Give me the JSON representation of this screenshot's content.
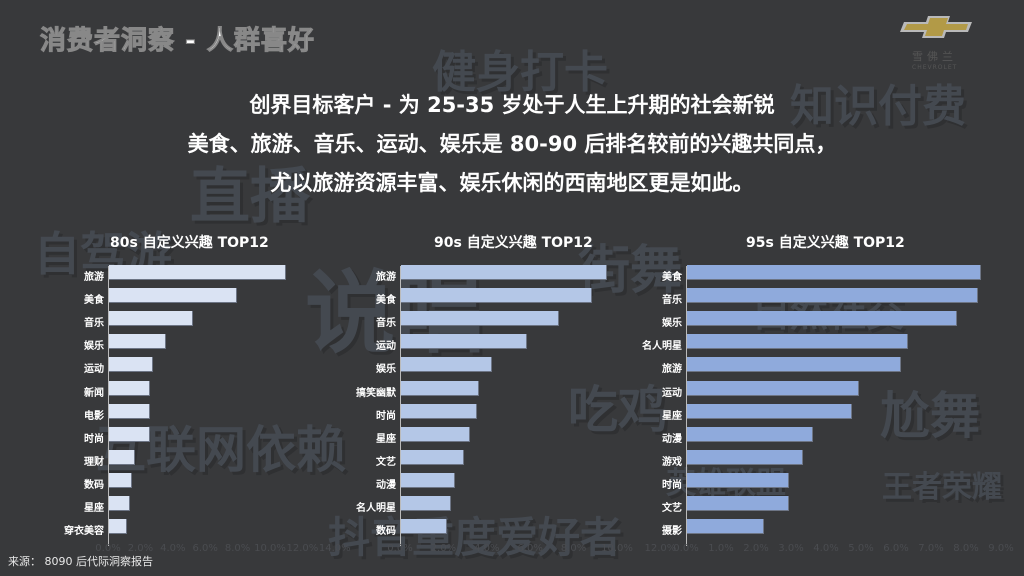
{
  "header": {
    "title": "消费者洞察 - 人群喜好",
    "logo_cn": "雪佛兰",
    "logo_en": "CHEVROLET"
  },
  "subtitle": {
    "line1": "创界目标客户 - 为 25-35 岁处于人生上升期的社会新锐",
    "line2": "美食、旅游、音乐、运动、娱乐是 80-90 后排名较前的兴趣共同点，",
    "line3": "尤以旅游资源丰富、娱乐休闲的西南地区更是如此。"
  },
  "watermarks": [
    "健身打卡",
    "知识付费",
    "直播",
    "自驾游",
    "说唱",
    "街舞",
    "自然社交",
    "吃鸡",
    "尬舞",
    "互联网依赖",
    "王者荣耀",
    "英雄联盟",
    "抖音重度爱好者"
  ],
  "colors": {
    "background": "#38393b",
    "bar_80s": "#dae3f3",
    "bar_90s": "#b4c7e7",
    "bar_95s": "#8faadc"
  },
  "source": "来源： 8090 后代际洞察报告",
  "chart_data": [
    {
      "type": "bar",
      "orientation": "horizontal",
      "title": "80s 自定义兴趣 TOP12",
      "categories": [
        "旅游",
        "美食",
        "音乐",
        "娱乐",
        "运动",
        "新闻",
        "电影",
        "时尚",
        "理财",
        "数码",
        "星座",
        "穿衣美容"
      ],
      "values": [
        10.9,
        7.9,
        5.2,
        3.5,
        2.7,
        2.5,
        2.5,
        2.5,
        1.6,
        1.4,
        1.3,
        1.1
      ],
      "xticks": [
        "0.0%",
        "2.0%",
        "4.0%",
        "6.0%",
        "8.0%",
        "10.0%",
        "12.0%",
        "14.0%"
      ],
      "xlim": [
        0,
        14
      ],
      "unit": "%",
      "grid": false
    },
    {
      "type": "bar",
      "orientation": "horizontal",
      "title": "90s 自定义兴趣 TOP12",
      "categories": [
        "旅游",
        "美食",
        "音乐",
        "运动",
        "娱乐",
        "搞笑幽默",
        "时尚",
        "星座",
        "文艺",
        "动漫",
        "名人明星",
        "数码"
      ],
      "values": [
        9.5,
        8.8,
        7.3,
        5.8,
        4.2,
        3.6,
        3.5,
        3.2,
        2.9,
        2.5,
        2.3,
        2.1
      ],
      "xticks": [
        "0.0%",
        "2.0%",
        "4.0%",
        "6.0%",
        "8.0%",
        "10.0%",
        "12.0%"
      ],
      "xlim": [
        0,
        12
      ],
      "unit": "%",
      "grid": false
    },
    {
      "type": "bar",
      "orientation": "horizontal",
      "title": "95s 自定义兴趣 TOP12",
      "categories": [
        "美食",
        "音乐",
        "娱乐",
        "名人明星",
        "旅游",
        "运动",
        "星座",
        "动漫",
        "游戏",
        "时尚",
        "文艺",
        "摄影"
      ],
      "values": [
        8.4,
        8.3,
        7.7,
        6.3,
        6.1,
        4.9,
        4.7,
        3.6,
        3.3,
        2.9,
        2.9,
        2.2
      ],
      "xticks": [
        "0.0%",
        "1.0%",
        "2.0%",
        "3.0%",
        "4.0%",
        "5.0%",
        "6.0%",
        "7.0%",
        "8.0%",
        "9.0%"
      ],
      "xlim": [
        0,
        9.5
      ],
      "unit": "%",
      "grid": false
    }
  ]
}
